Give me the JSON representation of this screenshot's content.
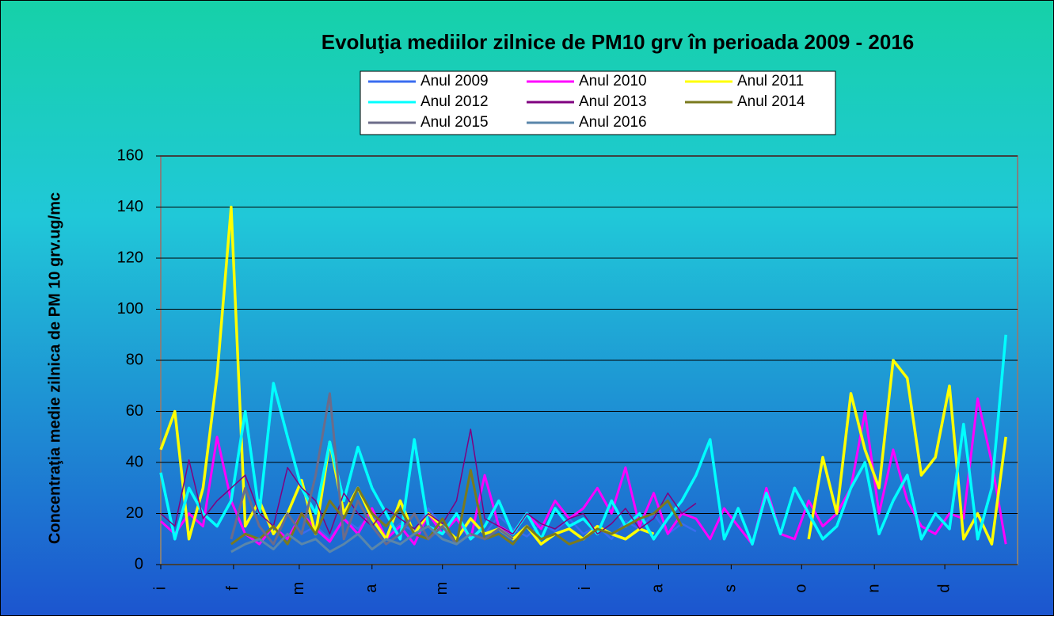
{
  "chart_data": {
    "type": "line",
    "title": "Evoluţia mediilor zilnice de PM10 grv în perioada 2009 - 2016",
    "y_label": "Concentraţia medie zilnica de PM 10 grv.ug/mc",
    "x": [
      0,
      6,
      12,
      18,
      24,
      30,
      36,
      42,
      48,
      54,
      60,
      66,
      72,
      78,
      84,
      90,
      96,
      102,
      108,
      114,
      120,
      126,
      132,
      138,
      144,
      150,
      156,
      162,
      168,
      174,
      180,
      186,
      192,
      198,
      204,
      210,
      216,
      222,
      228,
      234,
      240,
      246,
      252,
      258,
      264,
      270,
      276,
      282,
      288,
      294,
      300,
      306,
      312,
      318,
      324,
      330,
      336,
      342,
      348,
      354,
      360
    ],
    "xlim": [
      0,
      365
    ],
    "xticks": [
      {
        "value": 0,
        "label": "i"
      },
      {
        "value": 31,
        "label": "f"
      },
      {
        "value": 59,
        "label": "m"
      },
      {
        "value": 90,
        "label": "a"
      },
      {
        "value": 120,
        "label": "m"
      },
      {
        "value": 151,
        "label": "i"
      },
      {
        "value": 181,
        "label": "i"
      },
      {
        "value": 212,
        "label": "a"
      },
      {
        "value": 243,
        "label": "s"
      },
      {
        "value": 273,
        "label": "o"
      },
      {
        "value": 304,
        "label": "n"
      },
      {
        "value": 334,
        "label": "d"
      }
    ],
    "ylim": [
      0,
      160
    ],
    "yticks": [
      0,
      20,
      40,
      60,
      80,
      100,
      120,
      140,
      160
    ],
    "grid": true,
    "series": [
      {
        "name": "Anul 2009",
        "color": "#3a6cf0",
        "values": [
          null,
          null,
          null,
          null,
          null,
          null,
          null,
          null,
          null,
          null,
          12,
          15,
          10,
          18,
          14,
          20,
          11,
          16,
          13,
          22,
          15,
          10,
          17,
          12,
          19,
          14,
          11,
          16,
          13,
          18,
          12,
          15,
          10,
          17,
          14,
          20,
          12,
          16,
          13,
          null,
          null,
          null,
          null,
          null,
          null,
          null,
          null,
          null,
          null,
          null,
          null,
          null,
          null,
          null,
          null,
          null,
          null,
          null,
          null,
          null,
          null
        ]
      },
      {
        "name": "Anul 2010",
        "color": "#ff00ff",
        "values": [
          17,
          12,
          20,
          15,
          50,
          25,
          12,
          8,
          15,
          10,
          20,
          14,
          9,
          18,
          12,
          22,
          10,
          15,
          8,
          20,
          12,
          18,
          10,
          35,
          15,
          12,
          20,
          14,
          25,
          18,
          22,
          30,
          20,
          38,
          15,
          28,
          12,
          20,
          18,
          10,
          22,
          15,
          8,
          30,
          12,
          10,
          25,
          15,
          20,
          30,
          60,
          20,
          45,
          25,
          15,
          12,
          20,
          18,
          65,
          40,
          8
        ]
      },
      {
        "name": "Anul 2011",
        "color": "#ffff00",
        "values": [
          45,
          60,
          10,
          30,
          74,
          140,
          15,
          25,
          12,
          20,
          33,
          12,
          48,
          20,
          30,
          18,
          10,
          25,
          12,
          20,
          15,
          10,
          18,
          12,
          14,
          10,
          15,
          8,
          12,
          14,
          10,
          15,
          12,
          10,
          14,
          12,
          null,
          null,
          null,
          null,
          null,
          null,
          null,
          null,
          null,
          null,
          10,
          42,
          20,
          67,
          45,
          30,
          80,
          73,
          35,
          42,
          70,
          10,
          20,
          8,
          50
        ]
      },
      {
        "name": "Anul 2012",
        "color": "#00ffff",
        "values": [
          36,
          10,
          30,
          20,
          15,
          25,
          60,
          20,
          71,
          50,
          30,
          20,
          48,
          25,
          46,
          30,
          20,
          10,
          49,
          15,
          12,
          20,
          10,
          15,
          25,
          12,
          20,
          10,
          22,
          15,
          18,
          12,
          25,
          15,
          20,
          10,
          18,
          25,
          35,
          49,
          10,
          22,
          8,
          28,
          12,
          30,
          20,
          10,
          15,
          30,
          40,
          12,
          25,
          35,
          10,
          20,
          14,
          55,
          10,
          30,
          90
        ]
      },
      {
        "name": "Anul 2013",
        "color": "#800080",
        "values": [
          20,
          15,
          41,
          18,
          25,
          30,
          35,
          20,
          15,
          38,
          30,
          25,
          12,
          28,
          20,
          15,
          22,
          18,
          14,
          20,
          16,
          25,
          53,
          18,
          15,
          12,
          20,
          16,
          14,
          18,
          20,
          12,
          16,
          22,
          14,
          18,
          28,
          20,
          24,
          null,
          null,
          null,
          null,
          null,
          null,
          null,
          null,
          null,
          null,
          null,
          null,
          null,
          null,
          null,
          null,
          null,
          null,
          null,
          null,
          null,
          null
        ]
      },
      {
        "name": "Anul 2014",
        "color": "#7a7a1e",
        "values": [
          null,
          null,
          null,
          null,
          null,
          8,
          12,
          10,
          15,
          8,
          20,
          12,
          25,
          18,
          30,
          20,
          15,
          22,
          12,
          10,
          18,
          8,
          37,
          10,
          12,
          8,
          15,
          10,
          12,
          8,
          10,
          14,
          12,
          15,
          18,
          20,
          25,
          15,
          null,
          null,
          null,
          null,
          null,
          null,
          null,
          null,
          null,
          null,
          null,
          null,
          null,
          null,
          null,
          null,
          null,
          null,
          null,
          null,
          null,
          null,
          null
        ]
      },
      {
        "name": "Anul 2015",
        "color": "#6c6c8a",
        "values": [
          null,
          null,
          null,
          null,
          null,
          10,
          30,
          15,
          8,
          20,
          12,
          35,
          67,
          10,
          25,
          15,
          8,
          12,
          20,
          10,
          15,
          8,
          12,
          10,
          14,
          10,
          null,
          null,
          null,
          null,
          null,
          null,
          null,
          null,
          null,
          null,
          null,
          null,
          null,
          null,
          null,
          null,
          null,
          null,
          null,
          null,
          null,
          null,
          null,
          null,
          null,
          null,
          null,
          null,
          null,
          null,
          null,
          null,
          null,
          null,
          null
        ]
      },
      {
        "name": "Anul 2016",
        "color": "#5a86aa",
        "values": [
          null,
          null,
          null,
          null,
          null,
          5,
          8,
          10,
          6,
          12,
          8,
          10,
          5,
          8,
          12,
          6,
          10,
          8,
          12,
          15,
          10,
          8,
          12,
          null,
          null,
          null,
          null,
          null,
          null,
          null,
          null,
          null,
          null,
          null,
          null,
          null,
          null,
          null,
          null,
          null,
          null,
          null,
          null,
          null,
          null,
          null,
          null,
          null,
          null,
          null,
          null,
          null,
          null,
          null,
          null,
          null,
          null,
          null,
          null,
          null,
          null
        ]
      }
    ]
  }
}
